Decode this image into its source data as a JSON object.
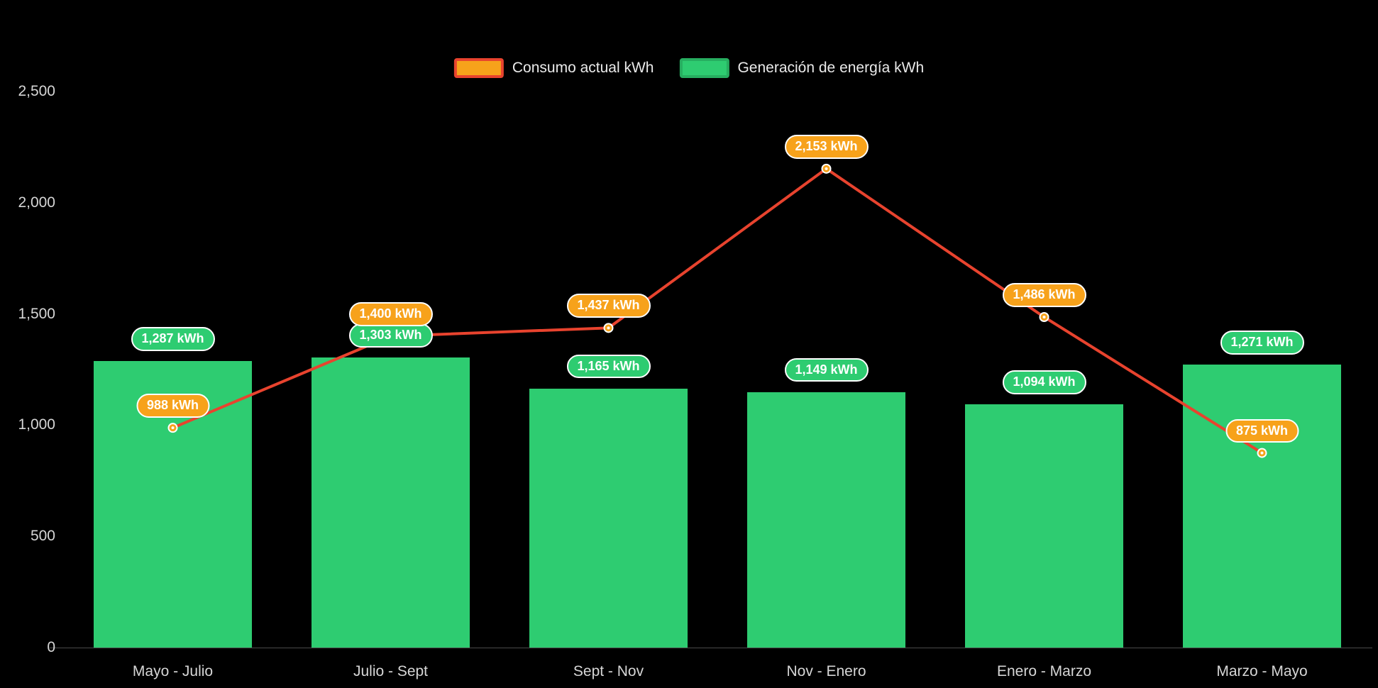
{
  "legend": {
    "items": [
      {
        "label": "Consumo actual kWh",
        "key": "consumo",
        "fill": "#F7A21B",
        "border": "#E8432E"
      },
      {
        "label": "Generación de energía kWh",
        "key": "generacion",
        "fill": "#2ECC71",
        "border": "#27AE60"
      }
    ]
  },
  "chart_data": {
    "type": "bar+line",
    "background": "#000000",
    "categories": [
      "Mayo - Julio",
      "Julio - Sept",
      "Sept - Nov",
      "Nov - Enero",
      "Enero - Marzo",
      "Marzo - Mayo"
    ],
    "series": [
      {
        "name": "Consumo actual kWh",
        "type": "line",
        "line_color": "#E8432E",
        "marker_color": "#F7A21B",
        "values": [
          988,
          1400,
          1437,
          2153,
          1486,
          875
        ],
        "labels": [
          "988 kWh",
          "1,400 kWh",
          "1,437 kWh",
          "2,153 kWh",
          "1,486 kWh",
          "875 kWh"
        ]
      },
      {
        "name": "Generación de energía kWh",
        "type": "bar",
        "color": "#2ECC71",
        "values": [
          1287,
          1303,
          1165,
          1149,
          1094,
          1271
        ],
        "labels": [
          "1,287 kWh",
          "1,303 kWh",
          "1,165 kWh",
          "1,149 kWh",
          "1,094 kWh",
          "1,271 kWh"
        ]
      }
    ],
    "ylim": [
      0,
      2500
    ],
    "yticks": [
      0,
      500,
      1000,
      1500,
      2000,
      2500
    ],
    "ytick_labels": [
      "0",
      "500",
      "1,000",
      "1,500",
      "2,000",
      "2,500"
    ],
    "xlabel": "",
    "ylabel": "",
    "grid": false,
    "legend_position": "top-center"
  }
}
